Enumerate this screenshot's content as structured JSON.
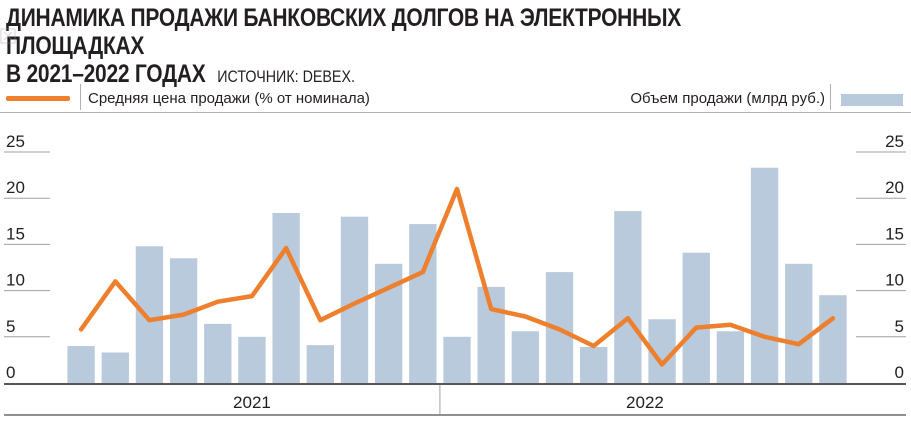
{
  "header": {
    "title_line1": "ДИНАМИКА ПРОДАЖИ БАНКОВСКИХ ДОЛГОВ НА ЭЛЕКТРОННЫХ ПЛОЩАДКАХ",
    "title_line2": "В 2021–2022 ГОДАХ",
    "source": "ИСТОЧНИК: DEBEX."
  },
  "legend": {
    "line_label": "Средняя цена продажи (% от номинала)",
    "bar_label": "Объем продажи (млрд руб.)"
  },
  "colors": {
    "line": "#ee7f2d",
    "bar": "#b8cadc",
    "text": "#231f20"
  },
  "chart_data": {
    "type": "bar",
    "title": "ДИНАМИКА ПРОДАЖИ БАНКОВСКИХ ДОЛГОВ НА ЭЛЕКТРОННЫХ ПЛОЩАДКАХ В 2021–2022 ГОДАХ",
    "periods": 23,
    "year_groups": [
      {
        "label": "2021",
        "count": 11
      },
      {
        "label": "2022",
        "count": 12
      }
    ],
    "ylim": [
      0,
      25
    ],
    "y_ticks": [
      "0",
      "5",
      "10",
      "15",
      "20",
      "25"
    ],
    "grid": false,
    "legend_position": "top",
    "series": [
      {
        "name": "Объем продажи (млрд руб.)",
        "type": "bar",
        "axis": "right",
        "values": [
          4.0,
          3.3,
          14.8,
          13.5,
          6.4,
          5.0,
          18.4,
          4.1,
          18.0,
          12.9,
          17.2,
          5.0,
          10.4,
          5.6,
          12.0,
          3.9,
          18.6,
          6.9,
          14.1,
          5.6,
          23.3,
          12.9,
          9.5
        ]
      },
      {
        "name": "Средняя цена продажи (% от номинала)",
        "type": "line",
        "axis": "left",
        "values": [
          5.8,
          11.0,
          6.8,
          7.4,
          8.8,
          9.4,
          14.6,
          6.8,
          8.6,
          10.3,
          12.0,
          21.0,
          8.0,
          7.2,
          5.8,
          4.0,
          7.0,
          2.0,
          6.0,
          6.3,
          5.0,
          4.2,
          7.0
        ]
      }
    ]
  }
}
